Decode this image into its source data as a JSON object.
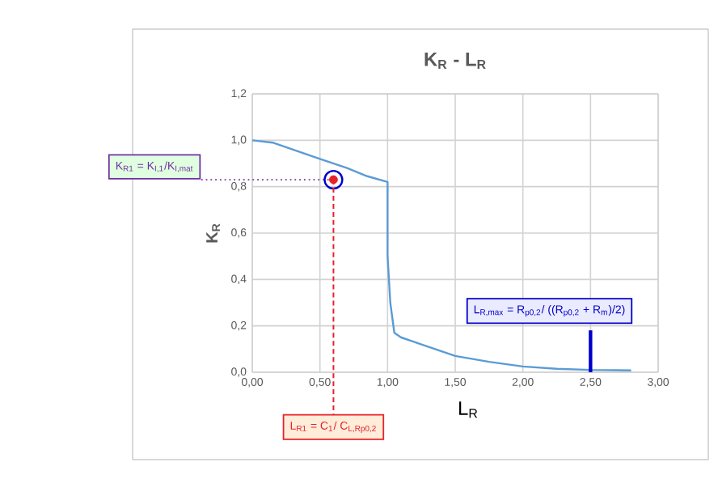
{
  "chart_data": {
    "type": "line",
    "title": "K$_{R}$ - L$_{R}$",
    "xlabel": "L$_{R}$",
    "ylabel": "K$_{R}$",
    "xlim": [
      0,
      3
    ],
    "ylim": [
      0,
      1.2
    ],
    "xticks": [
      {
        "value": 0,
        "label": "0,00"
      },
      {
        "value": 0.5,
        "label": "0,50"
      },
      {
        "value": 1,
        "label": "1,00"
      },
      {
        "value": 1.5,
        "label": "1,50"
      },
      {
        "value": 2,
        "label": "2,00"
      },
      {
        "value": 2.5,
        "label": "2,50"
      },
      {
        "value": 3,
        "label": "3,00"
      }
    ],
    "yticks": [
      {
        "value": 0,
        "label": "0,0"
      },
      {
        "value": 0.2,
        "label": "0,2"
      },
      {
        "value": 0.4,
        "label": "0,4"
      },
      {
        "value": 0.6,
        "label": "0,6"
      },
      {
        "value": 0.8,
        "label": "0,8"
      },
      {
        "value": 1.0,
        "label": "1,0"
      },
      {
        "value": 1.2,
        "label": "1,2"
      }
    ],
    "grid": true,
    "series": [
      {
        "color": "#5b9bd5",
        "x": [
          0,
          0.15,
          0.3,
          0.5,
          0.7,
          0.85,
          1.0,
          1.0,
          1.02,
          1.05,
          1.1,
          1.25,
          1.5,
          1.75,
          2.0,
          2.25,
          2.5,
          2.8
        ],
        "values": [
          1.0,
          0.99,
          0.96,
          0.92,
          0.88,
          0.845,
          0.82,
          0.5,
          0.3,
          0.17,
          0.15,
          0.12,
          0.07,
          0.045,
          0.025,
          0.015,
          0.01,
          0.008
        ]
      },
      {
        "type": "scatter",
        "color": "#e8202a",
        "x": [
          0.6
        ],
        "values": [
          0.83
        ]
      }
    ],
    "ref_lines": [
      {
        "axis": "y",
        "value": 0.83,
        "label": "K$_{R1}$ = K$_{I,1}$/K$_{I,mat}$",
        "color": "#7030a0",
        "line_style": "dotted"
      },
      {
        "axis": "x",
        "value": 0.6,
        "label": "L$_{R1}$ = C$_{1}$/ C$_{L,Rp0,2}$",
        "color": "#e8202a",
        "line_style": "dashed"
      },
      {
        "axis": "x",
        "value": 2.5,
        "label": "L$_{R,max}$ = R$_{p0,2}$/ ((R$_{p0,2}$ + R$_{m}$)/2)",
        "color": "#0000cc",
        "line_style": "solid"
      }
    ]
  }
}
